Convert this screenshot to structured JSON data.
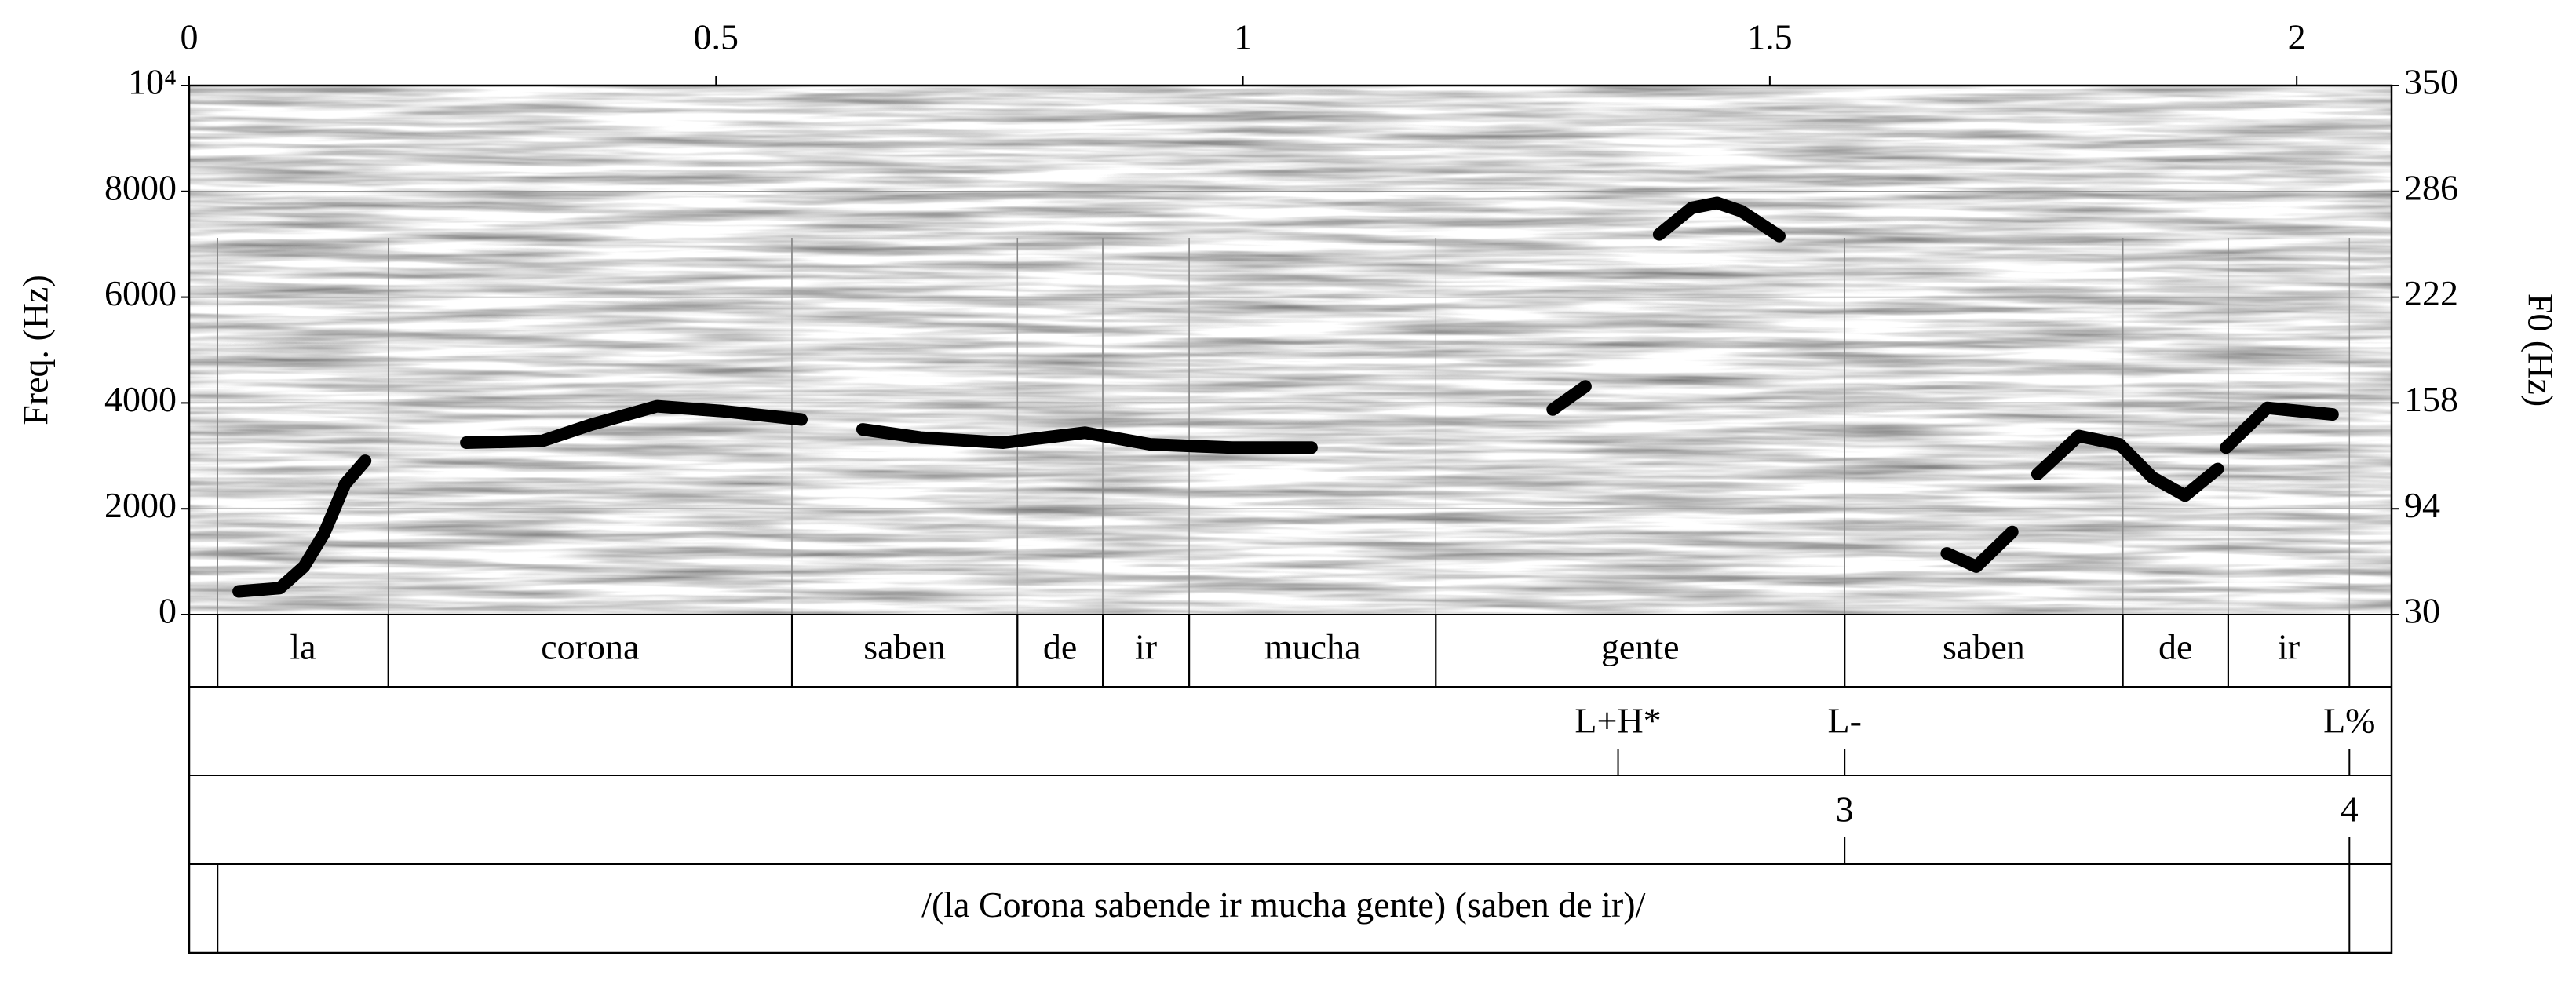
{
  "chart_data": {
    "type": "spectrogram",
    "ylabel": "Freq. (Hz)",
    "y2label": "F0 (Hz)",
    "xlim": [
      0,
      2.09
    ],
    "xticks": [
      0,
      0.5,
      1,
      1.5,
      2
    ],
    "ylim": [
      0,
      10000
    ],
    "yticks": [
      0,
      2000,
      4000,
      6000,
      8000,
      {
        "value": 10000,
        "label": "10⁴"
      }
    ],
    "y2lim": [
      30,
      350
    ],
    "y2ticks": [
      30,
      94,
      158,
      222,
      286,
      350
    ],
    "grid": true,
    "x": [
      0.047,
      0.086,
      0.109,
      0.128,
      0.148,
      0.167,
      null,
      0.263,
      0.335,
      0.382,
      0.444,
      0.507,
      0.581,
      null,
      0.639,
      0.694,
      0.772,
      0.85,
      0.912,
      0.99,
      1.065,
      null,
      1.294,
      1.325,
      null,
      1.395,
      1.426,
      1.45,
      1.473,
      1.509,
      null,
      1.668,
      1.696,
      1.73,
      null,
      1.754,
      1.793,
      1.832,
      1.863,
      1.894,
      1.925,
      null,
      1.933,
      1.972,
      2.034
    ],
    "series": [
      {
        "color": "#000000",
        "axis": "y2",
        "values": [
          44,
          46,
          59,
          79,
          109,
          123,
          null,
          134,
          135,
          145,
          156,
          153,
          148,
          null,
          142,
          137,
          134,
          140,
          133,
          131,
          131,
          null,
          154,
          168,
          null,
          260,
          276,
          279,
          274,
          259,
          null,
          67,
          59,
          80,
          null,
          115,
          138,
          133,
          113,
          102,
          118,
          null,
          131,
          155,
          151
        ]
      }
    ],
    "tiers": [
      {
        "kind": "interval",
        "intervals": [
          {
            "start": 0.027,
            "end": 0.189,
            "text": "la"
          },
          {
            "start": 0.189,
            "end": 0.572,
            "text": "corona"
          },
          {
            "start": 0.572,
            "end": 0.786,
            "text": "saben"
          },
          {
            "start": 0.786,
            "end": 0.867,
            "text": "de"
          },
          {
            "start": 0.867,
            "end": 0.949,
            "text": "ir"
          },
          {
            "start": 0.949,
            "end": 1.183,
            "text": "mucha"
          },
          {
            "start": 1.183,
            "end": 1.571,
            "text": "gente"
          },
          {
            "start": 1.571,
            "end": 1.835,
            "text": "saben"
          },
          {
            "start": 1.835,
            "end": 1.935,
            "text": "de"
          },
          {
            "start": 1.935,
            "end": 2.05,
            "text": "ir"
          }
        ]
      },
      {
        "kind": "point",
        "points": [
          {
            "time": 1.356,
            "text": "L+H*"
          },
          {
            "time": 1.571,
            "text": "L-"
          },
          {
            "time": 2.05,
            "text": "L%"
          }
        ]
      },
      {
        "kind": "point",
        "points": [
          {
            "time": 1.571,
            "text": "3"
          },
          {
            "time": 2.05,
            "text": "4"
          }
        ]
      },
      {
        "kind": "interval",
        "intervals": [
          {
            "start": 0.027,
            "end": 2.05,
            "text": "/(la Corona sabende ir mucha gente) (saben de ir)/"
          }
        ]
      }
    ]
  }
}
